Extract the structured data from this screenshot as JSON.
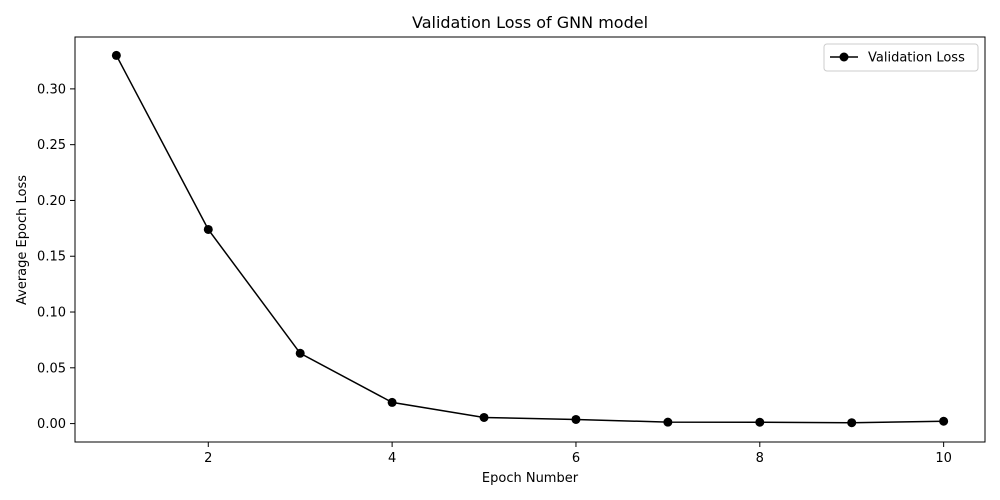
{
  "chart_data": {
    "type": "line",
    "title": "Validation Loss of GNN model",
    "xlabel": "Epoch Number",
    "ylabel": "Average Epoch Loss",
    "xlim": [
      0.55,
      10.45
    ],
    "ylim": [
      -0.0165,
      0.3465
    ],
    "x_ticks": [
      2,
      4,
      6,
      8,
      10
    ],
    "y_ticks": [
      0.0,
      0.05,
      0.1,
      0.15,
      0.2,
      0.25,
      0.3
    ],
    "x_tick_labels": [
      "2",
      "4",
      "6",
      "8",
      "10"
    ],
    "y_tick_labels": [
      "0.00",
      "0.05",
      "0.10",
      "0.15",
      "0.20",
      "0.25",
      "0.30"
    ],
    "legend_position": "top-right",
    "grid": false,
    "series": [
      {
        "name": "Validation Loss",
        "color": "#000000",
        "marker": "circle",
        "x": [
          1,
          2,
          3,
          4,
          5,
          6,
          7,
          8,
          9,
          10
        ],
        "y": [
          0.33,
          0.174,
          0.063,
          0.019,
          0.0055,
          0.0037,
          0.0013,
          0.0012,
          0.0008,
          0.0021
        ]
      }
    ]
  }
}
